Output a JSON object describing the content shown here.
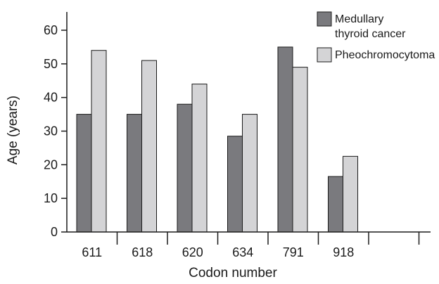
{
  "chart_data": {
    "type": "bar",
    "title": "",
    "xlabel": "Codon number",
    "ylabel": "Age (years)",
    "categories": [
      "611",
      "618",
      "620",
      "634",
      "791",
      "918"
    ],
    "series": [
      {
        "name": "Medullary thyroid cancer",
        "values": [
          35,
          35,
          38,
          28.5,
          55,
          16.5
        ],
        "color": "#7a7a7e"
      },
      {
        "name": "Pheochromocytoma",
        "values": [
          54,
          51,
          44,
          35,
          49,
          22.5
        ],
        "color": "#d4d4d6"
      }
    ],
    "ylim": [
      0,
      65
    ],
    "yticks": [
      0,
      10,
      20,
      30,
      40,
      50,
      60
    ],
    "grid": false,
    "legend_position": "top-right",
    "legend_lines": [
      [
        "Medullary",
        "thyroid cancer"
      ],
      [
        "Pheochromocytoma"
      ]
    ]
  }
}
